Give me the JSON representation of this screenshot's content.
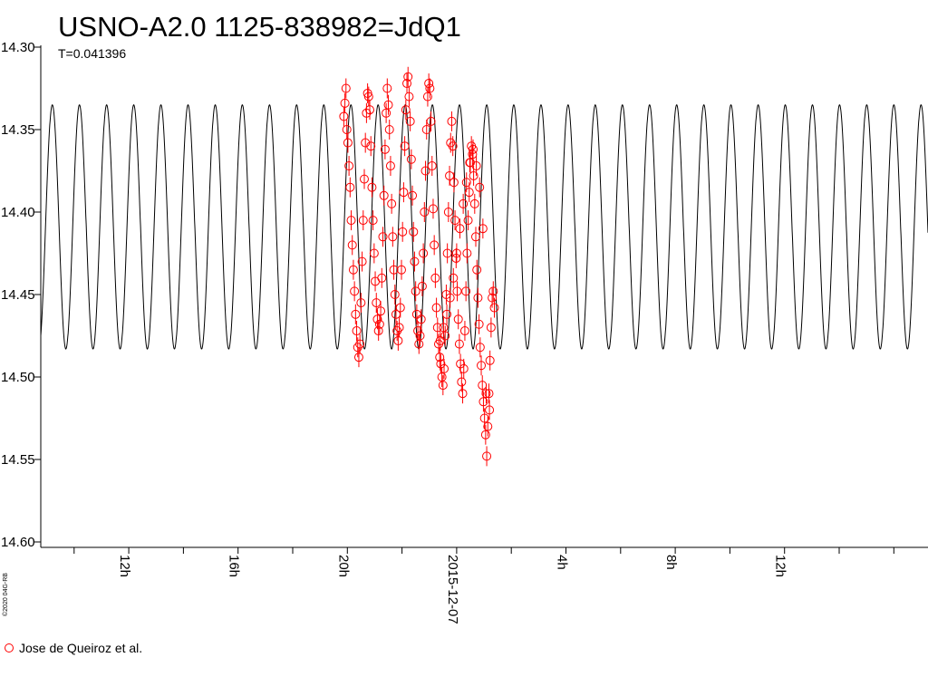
{
  "chart_data": {
    "type": "scatter",
    "title": "USNO-A2.0 1125-838982=JdQ1",
    "subtitle": "T=0.041396",
    "credit": "©2020 04G-RB",
    "y_axis": {
      "range": [
        14.3,
        14.6
      ],
      "inverted": true,
      "tick_labels": [
        "14.30",
        "14.35",
        "14.40",
        "14.45",
        "14.50",
        "14.55",
        "14.60"
      ]
    },
    "x_axis": {
      "unit": "hours from 2015-12-07 00:00",
      "range": [
        5.0,
        20.2
      ],
      "tick_labels": [
        {
          "label": "12h",
          "hour": -12
        },
        {
          "label": "16h",
          "hour": -8
        },
        {
          "label": "20h",
          "hour": -4
        },
        {
          "label": "2015-12-07",
          "hour": 0
        },
        {
          "label": "4h",
          "hour": 4
        },
        {
          "label": "8h",
          "hour": 8
        },
        {
          "label": "12h",
          "hour": 12
        }
      ]
    },
    "model_curve": {
      "period_days": 0.041396,
      "mag_min": 14.335,
      "mag_max": 14.483,
      "reference_peak_hour": -6.85
    },
    "series": [
      {
        "name": "Jose de Queiroz et al.",
        "color": "#ff0000",
        "marker": "open-circle",
        "points": [
          [
            -4.13,
            14.342
          ],
          [
            -4.09,
            14.334
          ],
          [
            -4.05,
            14.325
          ],
          [
            -4.02,
            14.35
          ],
          [
            -3.98,
            14.358
          ],
          [
            -3.94,
            14.372
          ],
          [
            -3.9,
            14.385
          ],
          [
            -3.86,
            14.405
          ],
          [
            -3.82,
            14.42
          ],
          [
            -3.78,
            14.435
          ],
          [
            -3.74,
            14.448
          ],
          [
            -3.7,
            14.462
          ],
          [
            -3.66,
            14.472
          ],
          [
            -3.62,
            14.482
          ],
          [
            -3.58,
            14.488
          ],
          [
            -3.54,
            14.48
          ],
          [
            -3.5,
            14.455
          ],
          [
            -3.46,
            14.43
          ],
          [
            -3.42,
            14.405
          ],
          [
            -3.38,
            14.38
          ],
          [
            -3.34,
            14.358
          ],
          [
            -3.3,
            14.34
          ],
          [
            -3.26,
            14.328
          ],
          [
            -3.22,
            14.33
          ],
          [
            -3.18,
            14.338
          ],
          [
            -3.14,
            14.36
          ],
          [
            -3.1,
            14.385
          ],
          [
            -3.06,
            14.405
          ],
          [
            -3.02,
            14.425
          ],
          [
            -2.98,
            14.442
          ],
          [
            -2.94,
            14.455
          ],
          [
            -2.9,
            14.465
          ],
          [
            -2.86,
            14.472
          ],
          [
            -2.82,
            14.468
          ],
          [
            -2.78,
            14.46
          ],
          [
            -2.74,
            14.44
          ],
          [
            -2.7,
            14.415
          ],
          [
            -2.66,
            14.39
          ],
          [
            -2.62,
            14.362
          ],
          [
            -2.58,
            14.34
          ],
          [
            -2.54,
            14.325
          ],
          [
            -2.5,
            14.335
          ],
          [
            -2.46,
            14.35
          ],
          [
            -2.42,
            14.372
          ],
          [
            -2.38,
            14.395
          ],
          [
            -2.34,
            14.415
          ],
          [
            -2.3,
            14.435
          ],
          [
            -2.26,
            14.45
          ],
          [
            -2.22,
            14.462
          ],
          [
            -2.18,
            14.472
          ],
          [
            -2.14,
            14.478
          ],
          [
            -2.1,
            14.47
          ],
          [
            -2.06,
            14.458
          ],
          [
            -2.02,
            14.435
          ],
          [
            -1.98,
            14.412
          ],
          [
            -1.94,
            14.388
          ],
          [
            -1.9,
            14.36
          ],
          [
            -1.86,
            14.338
          ],
          [
            -1.82,
            14.322
          ],
          [
            -1.78,
            14.318
          ],
          [
            -1.74,
            14.33
          ],
          [
            -1.7,
            14.345
          ],
          [
            -1.66,
            14.368
          ],
          [
            -1.62,
            14.39
          ],
          [
            -1.58,
            14.412
          ],
          [
            -1.54,
            14.43
          ],
          [
            -1.5,
            14.448
          ],
          [
            -1.46,
            14.462
          ],
          [
            -1.42,
            14.472
          ],
          [
            -1.38,
            14.48
          ],
          [
            -1.34,
            14.475
          ],
          [
            -1.3,
            14.465
          ],
          [
            -1.26,
            14.445
          ],
          [
            -1.22,
            14.425
          ],
          [
            -1.18,
            14.4
          ],
          [
            -1.14,
            14.375
          ],
          [
            -1.1,
            14.35
          ],
          [
            -1.06,
            14.33
          ],
          [
            -1.02,
            14.322
          ],
          [
            -0.98,
            14.325
          ],
          [
            -0.94,
            14.345
          ],
          [
            -0.9,
            14.372
          ],
          [
            -0.86,
            14.398
          ],
          [
            -0.82,
            14.42
          ],
          [
            -0.78,
            14.44
          ],
          [
            -0.74,
            14.458
          ],
          [
            -0.7,
            14.47
          ],
          [
            -0.66,
            14.48
          ],
          [
            -0.62,
            14.488
          ],
          [
            -0.58,
            14.492
          ],
          [
            -0.54,
            14.5
          ],
          [
            -0.5,
            14.505
          ],
          [
            -0.46,
            14.495
          ],
          [
            -0.42,
            14.475
          ],
          [
            -0.38,
            14.45
          ],
          [
            -0.34,
            14.425
          ],
          [
            -0.3,
            14.4
          ],
          [
            -0.26,
            14.378
          ],
          [
            -0.22,
            14.358
          ],
          [
            -0.18,
            14.345
          ],
          [
            -0.14,
            14.36
          ],
          [
            -0.1,
            14.382
          ],
          [
            -0.06,
            14.405
          ],
          [
            -0.02,
            14.428
          ],
          [
            0.02,
            14.448
          ],
          [
            0.06,
            14.465
          ],
          [
            0.1,
            14.48
          ],
          [
            0.14,
            14.492
          ],
          [
            0.18,
            14.503
          ],
          [
            0.22,
            14.51
          ],
          [
            0.26,
            14.495
          ],
          [
            0.3,
            14.472
          ],
          [
            0.34,
            14.448
          ],
          [
            0.38,
            14.425
          ],
          [
            0.42,
            14.405
          ],
          [
            0.46,
            14.388
          ],
          [
            0.5,
            14.37
          ],
          [
            0.54,
            14.36
          ],
          [
            0.58,
            14.365
          ],
          [
            0.62,
            14.378
          ],
          [
            0.66,
            14.395
          ],
          [
            0.7,
            14.415
          ],
          [
            0.74,
            14.435
          ],
          [
            0.78,
            14.452
          ],
          [
            0.82,
            14.468
          ],
          [
            0.86,
            14.482
          ],
          [
            0.9,
            14.493
          ],
          [
            0.94,
            14.505
          ],
          [
            0.98,
            14.515
          ],
          [
            1.02,
            14.525
          ],
          [
            1.06,
            14.535
          ],
          [
            1.1,
            14.548
          ],
          [
            1.14,
            14.53
          ],
          [
            1.18,
            14.51
          ],
          [
            1.22,
            14.49
          ],
          [
            1.26,
            14.47
          ],
          [
            1.3,
            14.452
          ],
          [
            1.34,
            14.448
          ],
          [
            1.38,
            14.458
          ],
          [
            -0.6,
            14.478
          ],
          [
            -0.48,
            14.47
          ],
          [
            -0.36,
            14.462
          ],
          [
            -0.24,
            14.452
          ],
          [
            -0.12,
            14.44
          ],
          [
            0.0,
            14.425
          ],
          [
            0.12,
            14.41
          ],
          [
            0.24,
            14.395
          ],
          [
            0.36,
            14.382
          ],
          [
            0.48,
            14.37
          ],
          [
            0.6,
            14.362
          ],
          [
            0.72,
            14.372
          ],
          [
            0.84,
            14.385
          ],
          [
            0.96,
            14.41
          ],
          [
            1.08,
            14.51
          ],
          [
            1.2,
            14.52
          ]
        ]
      }
    ]
  }
}
